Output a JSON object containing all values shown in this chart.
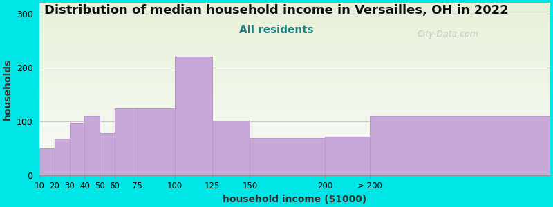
{
  "title": "Distribution of median household income in Versailles, OH in 2022",
  "subtitle": "All residents",
  "xlabel": "household income ($1000)",
  "ylabel": "households",
  "bar_lefts": [
    10,
    20,
    30,
    40,
    50,
    60,
    75,
    100,
    125,
    150,
    200,
    230
  ],
  "bar_widths": [
    10,
    10,
    10,
    10,
    10,
    15,
    25,
    25,
    25,
    50,
    30,
    120
  ],
  "bar_values": [
    50,
    68,
    98,
    110,
    78,
    125,
    125,
    220,
    102,
    70,
    72,
    110
  ],
  "xtick_positions": [
    10,
    20,
    30,
    40,
    50,
    60,
    75,
    100,
    125,
    150,
    200,
    230
  ],
  "xtick_labels": [
    "10",
    "20",
    "30",
    "40",
    "50",
    "60",
    "75",
    "100",
    "125",
    "150",
    "200",
    "> 200"
  ],
  "bar_color": "#c8a8d8",
  "bar_edge_color": "#b898c8",
  "bg_color": "#00e5e5",
  "plot_bg_top": "#e8f0d8",
  "plot_bg_bottom": "#f8fbf8",
  "ylim": [
    0,
    320
  ],
  "xlim": [
    10,
    350
  ],
  "yticks": [
    0,
    100,
    200,
    300
  ],
  "watermark": "City-Data.com",
  "title_fontsize": 13,
  "subtitle_fontsize": 11,
  "axis_label_fontsize": 10
}
